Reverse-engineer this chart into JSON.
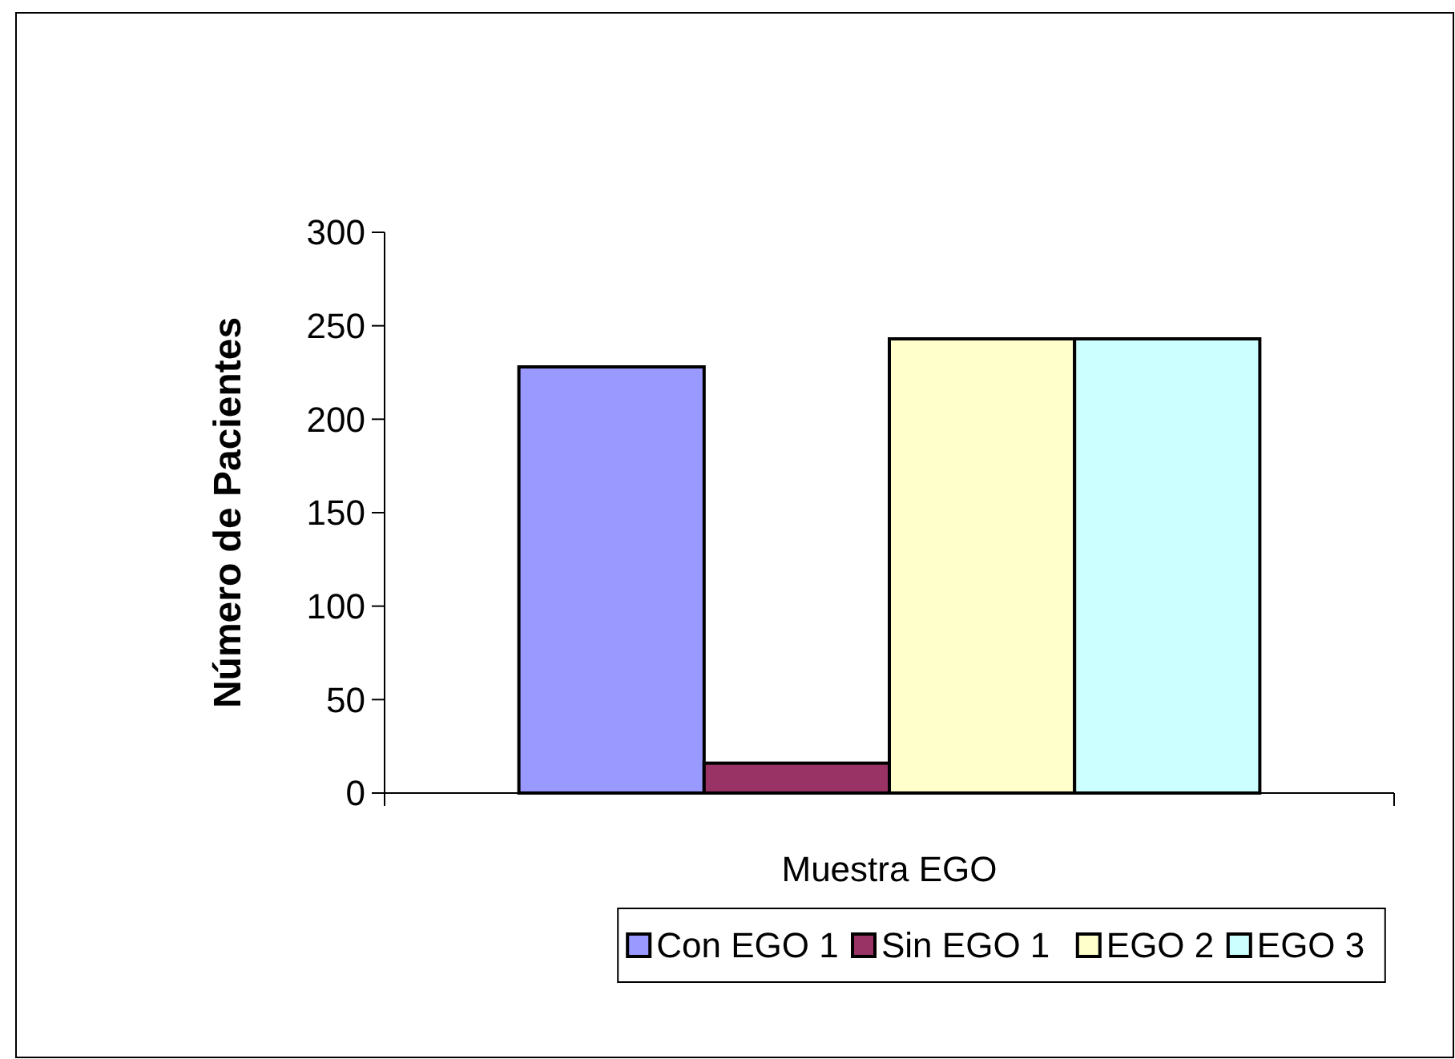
{
  "chart_data": {
    "type": "bar",
    "ylabel": "Número de Pacientes",
    "categories": [
      "Muestra EGO"
    ],
    "series": [
      {
        "name": "Con EGO 1",
        "color": "#9999ff",
        "values": [
          228
        ]
      },
      {
        "name": "Sin EGO 1",
        "color": "#993366",
        "values": [
          16
        ]
      },
      {
        "name": "EGO 2",
        "color": "#ffffcc",
        "values": [
          243
        ]
      },
      {
        "name": "EGO 3",
        "color": "#ccffff",
        "values": [
          243
        ]
      }
    ],
    "ylim": [
      0,
      300
    ],
    "yticks": [
      0,
      50,
      100,
      150,
      200,
      250,
      300
    ],
    "grid": false,
    "legend": "bottom"
  }
}
